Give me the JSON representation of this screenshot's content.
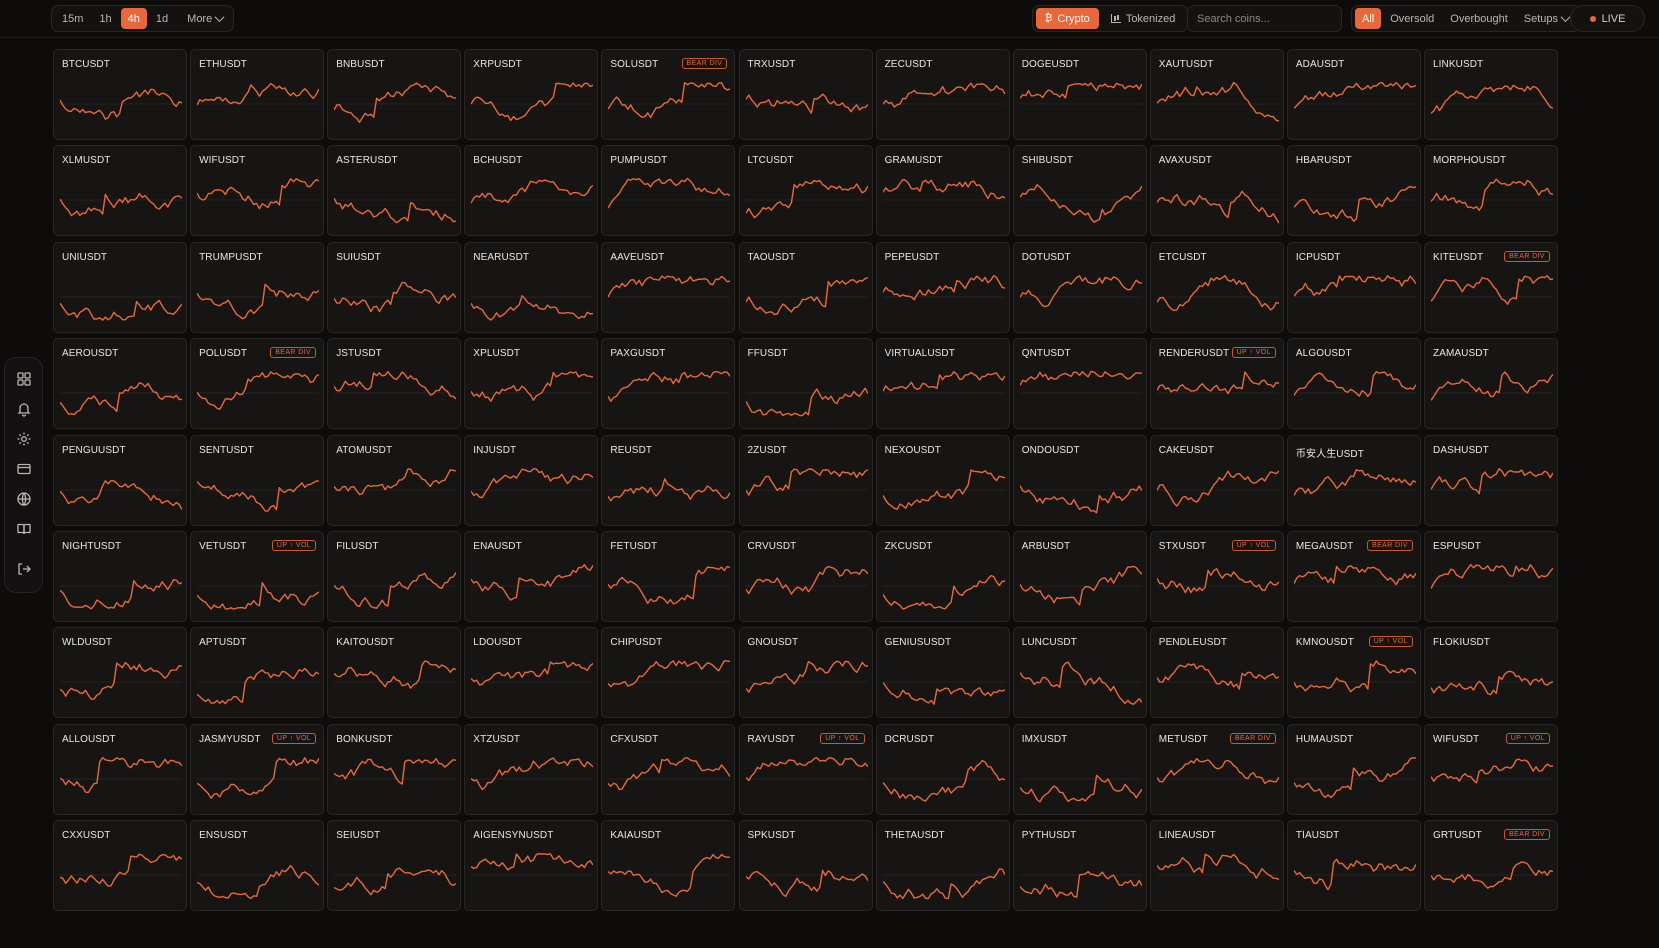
{
  "toolbar": {
    "timeframes": [
      "15m",
      "1h",
      "4h",
      "1d"
    ],
    "active_timeframe": "4h",
    "more_label": "More",
    "types": [
      {
        "label": "Crypto",
        "icon": "bitcoin-icon",
        "active": true
      },
      {
        "label": "Tokenized",
        "icon": "chart-icon",
        "active": false
      }
    ],
    "search_placeholder": "Search coins...",
    "filters": [
      "All",
      "Oversold",
      "Overbought"
    ],
    "active_filter": "All",
    "setups_label": "Setups",
    "live_label": "LIVE"
  },
  "sidebar": {
    "icons": [
      "grid-icon",
      "bell-icon",
      "gear-icon",
      "card-icon",
      "globe-icon",
      "book-icon",
      "logout-icon"
    ]
  },
  "colors": {
    "accent": "#e8683a",
    "background": "#0e0c0b",
    "card": "#171514"
  },
  "rows": [
    [
      "BTCUSDT",
      "ETHUSDT",
      "BNBUSDT",
      "XRPUSDT",
      "SOLUSDT|BEAR DIV",
      "TRXUSDT",
      "ZECUSDT",
      "DOGEUSDT",
      "XAUTUSDT",
      "ADAUSDT",
      "LINKUSDT"
    ],
    [
      "XLMUSDT",
      "WIFUSDT",
      "ASTERUSDT",
      "BCHUSDT",
      "PUMPUSDT",
      "LTCUSDT",
      "GRAMUSDT",
      "SHIBUSDT",
      "AVAXUSDT",
      "HBARUSDT",
      "MORPHOUSDT"
    ],
    [
      "UNIUSDT",
      "TRUMPUSDT",
      "SUIUSDT",
      "NEARUSDT",
      "AAVEUSDT",
      "TAOUSDT",
      "PEPEUSDT",
      "DOTUSDT",
      "ETCUSDT",
      "ICPUSDT",
      "KITEUSDT|BEAR DIV"
    ],
    [
      "AEROUSDT",
      "POLUSDT|BEAR DIV",
      "JSTUSDT",
      "XPLUSDT",
      "PAXGUSDT",
      "FFUSDT",
      "VIRTUALUSDT",
      "QNTUSDT",
      "RENDERUSDT|UP ↑ VOL",
      "ALGOUSDT",
      "ZAMAUSDT"
    ],
    [
      "PENGUUSDT",
      "SENTUSDT",
      "ATOMUSDT",
      "INJUSDT",
      "REUSDT",
      "2ZUSDT",
      "NEXOUSDT",
      "ONDOUSDT",
      "CAKEUSDT",
      "币安人生USDT",
      "DASHUSDT"
    ],
    [
      "NIGHTUSDT",
      "VETUSDT|UP ↑ VOL",
      "FILUSDT",
      "ENAUSDT",
      "FETUSDT",
      "CRVUSDT",
      "ZKCUSDT",
      "ARBUSDT",
      "STXUSDT|UP ↑ VOL",
      "MEGAUSDT|BEAR DIV",
      "ESPUSDT"
    ],
    [
      "WLDUSDT",
      "APTUSDT",
      "KAITOUSDT",
      "LDOUSDT",
      "CHIPUSDT",
      "GNOUSDT",
      "GENIUSUSDT",
      "LUNCUSDT",
      "PENDLEUSDT",
      "KMNOUSDT|UP ↑ VOL",
      "FLOKIUSDT"
    ],
    [
      "ALLOUSDT",
      "JASMYUSDT|UP ↑ VOL",
      "BONKUSDT",
      "XTZUSDT",
      "CFXUSDT",
      "RAYUSDT|UP ↑ VOL",
      "DCRUSDT",
      "IMXUSDT",
      "METUSDT|BEAR DIV",
      "HUMAUSDT",
      "WIFUSDT|UP ↑ VOL"
    ],
    [
      "CXXUSDT",
      "ENSUSDT",
      "SEIUSDT",
      "AIGENSYNUSDT",
      "KAIAUSDT",
      "SPKUSDT",
      "THETAUSDT",
      "PYTHUSDT",
      "LINEAUSDT",
      "TIAUSDT",
      "GRTUSDT|BEAR DIV"
    ]
  ]
}
